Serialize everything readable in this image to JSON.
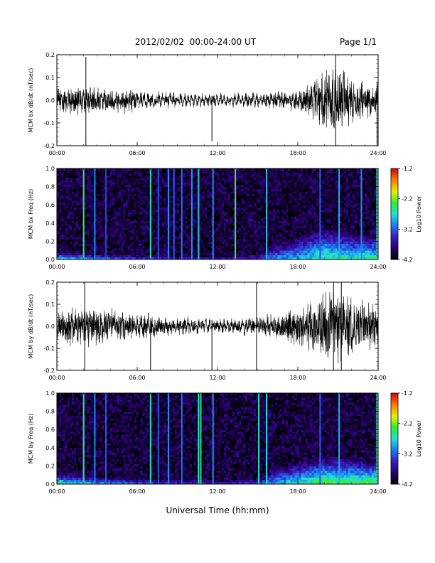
{
  "header": {
    "title": "2012/02/02  00:00-24:00 UT",
    "page": "Page 1/1"
  },
  "footer": {
    "xlabel": "Universal Time (hh:mm)"
  },
  "colors": {
    "trace": "#000000",
    "colormap": [
      "#000000",
      "#2a0070",
      "#3a1cc0",
      "#1a7cf0",
      "#22e0e0",
      "#2ef02e",
      "#e8f000",
      "#ff7a00",
      "#e00000"
    ]
  },
  "chart_data": [
    {
      "type": "line",
      "panel": "bx_dbdt",
      "ylabel": "MCM bx dB/dt (nT/sec)",
      "xlim": [
        "00:00",
        "24:00"
      ],
      "ylim": [
        -0.2,
        0.2
      ],
      "x_ticks": [
        "00:00",
        "06:00",
        "12:00",
        "18:00",
        "24:00"
      ],
      "y_ticks": [
        "-0.2",
        "-0.1",
        "0.0",
        "0.1",
        "0.2"
      ],
      "envelope": {
        "hours": [
          0,
          1,
          2,
          3,
          4,
          5,
          6,
          7,
          8,
          9,
          10,
          11,
          12,
          13,
          14,
          15,
          16,
          17,
          18,
          19,
          20,
          21,
          22,
          23,
          24
        ],
        "amplitude": [
          0.045,
          0.05,
          0.055,
          0.05,
          0.045,
          0.045,
          0.035,
          0.03,
          0.025,
          0.025,
          0.02,
          0.02,
          0.02,
          0.02,
          0.025,
          0.025,
          0.03,
          0.035,
          0.045,
          0.07,
          0.12,
          0.14,
          0.09,
          0.07,
          0.07
        ]
      },
      "spikes": [
        {
          "time": "02:10",
          "low": -0.2,
          "high": 0.19
        },
        {
          "time": "11:35",
          "low": -0.18,
          "high": 0.02
        },
        {
          "time": "20:50",
          "low": -0.2,
          "high": 0.2
        },
        {
          "time": "23:55",
          "low": -0.2,
          "high": 0.08
        }
      ]
    },
    {
      "type": "heatmap",
      "panel": "bx_freq",
      "ylabel": "MCM bx Freq (Hz)",
      "xlim": [
        "00:00",
        "24:00"
      ],
      "ylim": [
        0.0,
        1.0
      ],
      "x_ticks": [
        "00:00",
        "06:00",
        "12:00",
        "18:00",
        "24:00"
      ],
      "y_ticks": [
        "0.0",
        "0.2",
        "0.4",
        "0.6",
        "0.8",
        "1.0"
      ],
      "colorbar": {
        "label": "Log10 Power",
        "ticks": [
          "-1.2",
          "-2.2",
          "-3.2",
          "-4.2"
        ],
        "range": [
          -4.2,
          -1.2
        ]
      },
      "vertical_lines": [
        {
          "time": "02:00",
          "power": -2.4
        },
        {
          "time": "02:50",
          "power": -3.0
        },
        {
          "time": "03:40",
          "power": -3.3
        },
        {
          "time": "07:00",
          "power": -2.6
        },
        {
          "time": "07:35",
          "power": -3.2
        },
        {
          "time": "08:20",
          "power": -3.0
        },
        {
          "time": "08:45",
          "power": -3.2
        },
        {
          "time": "09:20",
          "power": -3.1
        },
        {
          "time": "10:05",
          "power": -3.0
        },
        {
          "time": "10:35",
          "power": -2.8
        },
        {
          "time": "11:40",
          "power": -3.0
        },
        {
          "time": "13:20",
          "power": -2.3
        },
        {
          "time": "15:40",
          "power": -2.8
        },
        {
          "time": "19:40",
          "power": -3.2
        },
        {
          "time": "21:05",
          "power": -2.9
        },
        {
          "time": "22:45",
          "power": -3.0
        },
        {
          "time": "23:55",
          "power": -2.6
        }
      ],
      "background_power": -4.0,
      "low_freq_enhancement": {
        "hours": [
          0,
          3,
          6,
          9,
          12,
          15,
          16,
          18,
          20,
          22,
          24
        ],
        "max_freq": [
          0.08,
          0.06,
          0.05,
          0.04,
          0.03,
          0.05,
          0.15,
          0.25,
          0.35,
          0.3,
          0.25
        ],
        "peak_power": [
          -2.6,
          -3.0,
          -3.2,
          -3.4,
          -3.5,
          -3.3,
          -3.0,
          -2.8,
          -2.4,
          -2.6,
          -2.4
        ]
      }
    },
    {
      "type": "line",
      "panel": "by_dbdt",
      "ylabel": "MCM by dB/dt (nT/sec)",
      "xlim": [
        "00:00",
        "24:00"
      ],
      "ylim": [
        -0.2,
        0.2
      ],
      "x_ticks": [
        "00:00",
        "06:00",
        "12:00",
        "18:00",
        "24:00"
      ],
      "y_ticks": [
        "-0.2",
        "-0.1",
        "0.0",
        "0.1",
        "0.2"
      ],
      "envelope": {
        "hours": [
          0,
          1,
          2,
          3,
          4,
          5,
          6,
          7,
          8,
          9,
          10,
          11,
          12,
          13,
          14,
          15,
          16,
          17,
          18,
          19,
          20,
          21,
          22,
          23,
          24
        ],
        "amplitude": [
          0.06,
          0.07,
          0.08,
          0.075,
          0.065,
          0.06,
          0.05,
          0.045,
          0.035,
          0.03,
          0.03,
          0.025,
          0.025,
          0.025,
          0.03,
          0.035,
          0.045,
          0.06,
          0.08,
          0.1,
          0.14,
          0.16,
          0.12,
          0.1,
          0.09
        ]
      },
      "spikes": [
        {
          "time": "02:05",
          "low": -0.2,
          "high": 0.2
        },
        {
          "time": "07:00",
          "low": -0.2,
          "high": 0.03
        },
        {
          "time": "11:35",
          "low": -0.2,
          "high": 0.03
        },
        {
          "time": "14:55",
          "low": -0.2,
          "high": 0.2
        },
        {
          "time": "20:40",
          "low": -0.2,
          "high": 0.2
        },
        {
          "time": "21:15",
          "low": -0.2,
          "high": 0.2
        }
      ]
    },
    {
      "type": "heatmap",
      "panel": "by_freq",
      "ylabel": "MCM by Freq (Hz)",
      "xlim": [
        "00:00",
        "24:00"
      ],
      "ylim": [
        0.0,
        1.0
      ],
      "x_ticks": [
        "00:00",
        "06:00",
        "12:00",
        "18:00",
        "24:00"
      ],
      "y_ticks": [
        "0.0",
        "0.2",
        "0.4",
        "0.6",
        "0.8",
        "1.0"
      ],
      "colorbar": {
        "label": "Log10 Power",
        "ticks": [
          "-1.2",
          "-2.2",
          "-3.2",
          "-4.2"
        ],
        "range": [
          -4.2,
          -1.2
        ]
      },
      "vertical_lines": [
        {
          "time": "02:00",
          "power": -2.5
        },
        {
          "time": "02:50",
          "power": -3.0
        },
        {
          "time": "03:40",
          "power": -3.2
        },
        {
          "time": "07:00",
          "power": -2.6
        },
        {
          "time": "07:35",
          "power": -3.2
        },
        {
          "time": "08:20",
          "power": -3.0
        },
        {
          "time": "09:20",
          "power": -3.1
        },
        {
          "time": "10:35",
          "power": -2.7
        },
        {
          "time": "10:45",
          "power": -2.4
        },
        {
          "time": "11:40",
          "power": -3.0
        },
        {
          "time": "15:05",
          "power": -2.6
        },
        {
          "time": "15:40",
          "power": -2.7
        },
        {
          "time": "19:40",
          "power": -3.2
        },
        {
          "time": "21:05",
          "power": -2.9
        },
        {
          "time": "23:55",
          "power": -2.5
        }
      ],
      "background_power": -4.0,
      "low_freq_enhancement": {
        "hours": [
          0,
          3,
          6,
          9,
          12,
          15,
          16,
          18,
          20,
          22,
          24
        ],
        "max_freq": [
          0.12,
          0.08,
          0.06,
          0.05,
          0.04,
          0.06,
          0.15,
          0.25,
          0.3,
          0.3,
          0.25
        ],
        "peak_power": [
          -2.4,
          -2.8,
          -3.1,
          -3.3,
          -3.4,
          -3.2,
          -2.9,
          -2.6,
          -2.2,
          -2.3,
          -2.2
        ]
      }
    }
  ]
}
